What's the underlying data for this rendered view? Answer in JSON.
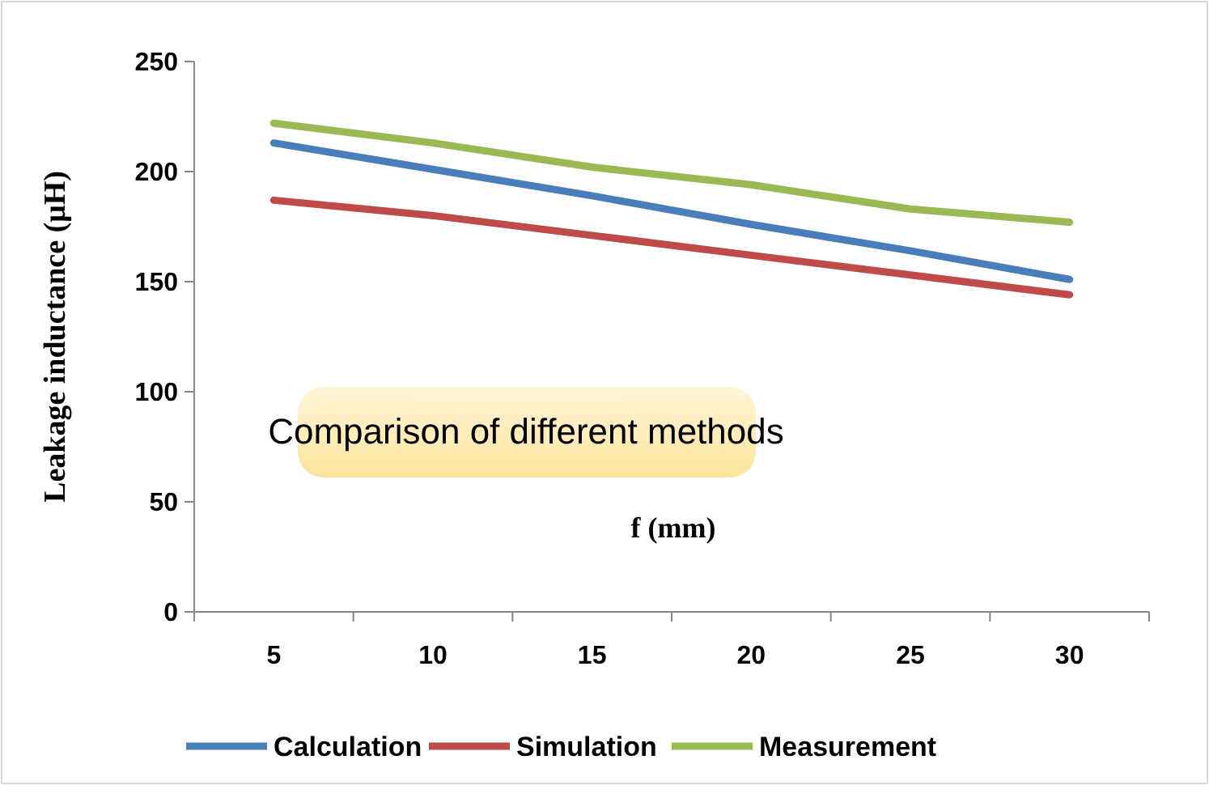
{
  "chart_data": {
    "type": "line",
    "xlabel": "f (mm)",
    "ylabel": "Leakage inductance  (μH)",
    "annotations": [
      "Comparison of different methods"
    ],
    "categories": [
      "5",
      "10",
      "15",
      "20",
      "25",
      "30"
    ],
    "series": [
      {
        "name": "Calculation",
        "color": "#4a7ebb",
        "values": [
          213,
          201,
          189,
          176,
          164,
          151
        ]
      },
      {
        "name": "Simulation",
        "color": "#be4b48",
        "values": [
          187,
          180,
          171,
          162,
          153,
          144
        ]
      },
      {
        "name": "Measurement",
        "color": "#98b954",
        "values": [
          222,
          213,
          202,
          194,
          183,
          177
        ]
      }
    ],
    "ylim": [
      0,
      250
    ],
    "yticks": [
      0,
      50,
      100,
      150,
      200,
      250
    ],
    "grid": false,
    "legend": "bottom",
    "marker": "none",
    "line_style": "solid"
  }
}
